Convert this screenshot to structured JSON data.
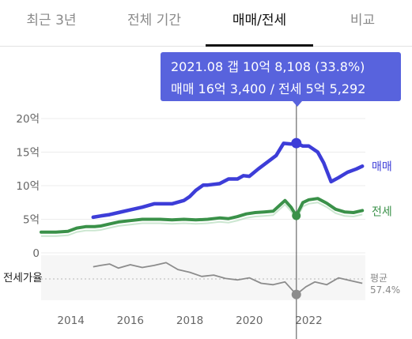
{
  "tabs": [
    {
      "label": "최근 3년",
      "active": false
    },
    {
      "label": "전체 기간",
      "active": false
    },
    {
      "label": "매매/전세",
      "active": true
    },
    {
      "label": "비교",
      "active": false
    }
  ],
  "tooltip": {
    "line1": "2021.08  갭 10억 8,108 (33.8%)",
    "line2": "매매 16억 3,400 / 전세 5억 5,292"
  },
  "colors": {
    "sale": "#3d3dd8",
    "jeonse": "#3a9149",
    "ratio": "#8c8c8c",
    "tooltip": "#5863dd"
  },
  "chart_data": {
    "type": "line",
    "y_axis": {
      "unit": "억",
      "ylim": [
        0,
        20
      ],
      "ticks": [
        "20억",
        "15억",
        "10억",
        "5억",
        "0"
      ]
    },
    "x_axis": {
      "xlim": [
        2013.0,
        2023.9
      ],
      "ticks": [
        "2014",
        "2016",
        "2018",
        "2020",
        "2022"
      ]
    },
    "series": [
      {
        "name": "매매",
        "x": [
          2014.75,
          2015.0,
          2015.3,
          2015.6,
          2016.0,
          2016.4,
          2016.8,
          2017.0,
          2017.4,
          2017.8,
          2018.0,
          2018.2,
          2018.45,
          2018.6,
          2019.0,
          2019.3,
          2019.6,
          2019.8,
          2020.0,
          2020.3,
          2020.6,
          2020.9,
          2021.15,
          2021.4,
          2021.58,
          2021.8,
          2022.0,
          2022.3,
          2022.5,
          2022.75,
          2023.0,
          2023.3,
          2023.6,
          2023.8
        ],
        "values": [
          5.3,
          5.5,
          5.7,
          6.0,
          6.4,
          6.8,
          7.3,
          7.3,
          7.3,
          7.8,
          8.4,
          9.3,
          10.1,
          10.1,
          10.3,
          11.0,
          11.0,
          11.5,
          11.4,
          12.5,
          13.5,
          14.5,
          16.3,
          16.2,
          16.34,
          15.9,
          15.9,
          15.0,
          13.4,
          10.6,
          11.2,
          12.0,
          12.5,
          12.9
        ]
      },
      {
        "name": "전세",
        "x": [
          2013.0,
          2013.5,
          2013.9,
          2014.2,
          2014.5,
          2014.8,
          2015.0,
          2015.3,
          2015.6,
          2016.0,
          2016.4,
          2016.8,
          2017.0,
          2017.4,
          2017.8,
          2018.2,
          2018.6,
          2019.0,
          2019.3,
          2019.6,
          2019.9,
          2020.2,
          2020.5,
          2020.8,
          2021.0,
          2021.2,
          2021.4,
          2021.58,
          2021.8,
          2022.0,
          2022.3,
          2022.6,
          2022.9,
          2023.2,
          2023.5,
          2023.8
        ],
        "values": [
          3.1,
          3.1,
          3.2,
          3.7,
          3.9,
          3.9,
          4.0,
          4.3,
          4.6,
          4.8,
          5.0,
          5.0,
          5.0,
          4.9,
          5.0,
          4.9,
          5.0,
          5.2,
          5.1,
          5.4,
          5.8,
          6.0,
          6.1,
          6.2,
          7.0,
          7.8,
          6.8,
          5.53,
          7.5,
          7.9,
          8.1,
          7.4,
          6.5,
          6.1,
          6.0,
          6.3
        ]
      },
      {
        "name": "전세가율",
        "x": [
          2014.75,
          2015.0,
          2015.3,
          2015.6,
          2016.0,
          2016.4,
          2016.8,
          2017.2,
          2017.6,
          2018.0,
          2018.4,
          2018.8,
          2019.2,
          2019.6,
          2020.0,
          2020.4,
          2020.8,
          2021.2,
          2021.58,
          2021.9,
          2022.2,
          2022.6,
          2023.0,
          2023.4,
          2023.8
        ],
        "values": [
          74,
          76,
          78,
          72,
          77,
          73,
          76,
          80,
          70,
          66,
          60,
          62,
          57,
          55,
          58,
          50,
          48,
          52,
          33.8,
          45,
          52,
          48,
          58,
          54,
          50
        ]
      }
    ],
    "ratio_axis": {
      "reference_label": "평균",
      "reference_value": "57.4%",
      "label": "전세가율"
    },
    "highlight": {
      "x": 2021.58
    }
  }
}
